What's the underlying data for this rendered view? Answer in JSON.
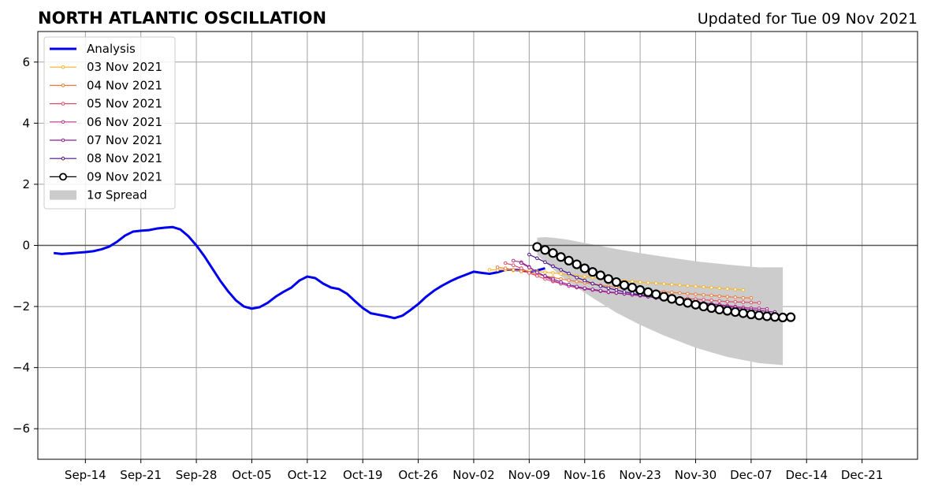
{
  "chart_data": {
    "type": "line",
    "title": "NORTH ATLANTIC OSCILLATION",
    "subtitle": "Updated for Tue 09 Nov 2021",
    "xlabel": "",
    "ylabel": "",
    "x_axis": {
      "type": "date",
      "range": [
        "2021-09-08",
        "2021-12-28"
      ],
      "ticks": [
        {
          "date": "2021-09-14",
          "label": "Sep-14"
        },
        {
          "date": "2021-09-21",
          "label": "Sep-21"
        },
        {
          "date": "2021-09-28",
          "label": "Sep-28"
        },
        {
          "date": "2021-10-05",
          "label": "Oct-05"
        },
        {
          "date": "2021-10-12",
          "label": "Oct-12"
        },
        {
          "date": "2021-10-19",
          "label": "Oct-19"
        },
        {
          "date": "2021-10-26",
          "label": "Oct-26"
        },
        {
          "date": "2021-11-02",
          "label": "Nov-02"
        },
        {
          "date": "2021-11-09",
          "label": "Nov-09"
        },
        {
          "date": "2021-11-16",
          "label": "Nov-16"
        },
        {
          "date": "2021-11-23",
          "label": "Nov-23"
        },
        {
          "date": "2021-11-30",
          "label": "Nov-30"
        },
        {
          "date": "2021-12-07",
          "label": "Dec-07"
        },
        {
          "date": "2021-12-14",
          "label": "Dec-14"
        },
        {
          "date": "2021-12-21",
          "label": "Dec-21"
        }
      ]
    },
    "y_axis": {
      "range": [
        -7,
        7
      ],
      "ticks": [
        {
          "value": -6,
          "label": "−6"
        },
        {
          "value": -4,
          "label": "−4"
        },
        {
          "value": -2,
          "label": "−2"
        },
        {
          "value": 0,
          "label": "0"
        },
        {
          "value": 2,
          "label": "2"
        },
        {
          "value": 4,
          "label": "4"
        },
        {
          "value": 6,
          "label": "6"
        }
      ]
    },
    "grid": true,
    "legend_position": "top-left",
    "analysis": {
      "name": "Analysis",
      "color": "#0000ee",
      "start_date": "2021-09-10",
      "values": [
        -0.25,
        -0.28,
        -0.26,
        -0.24,
        -0.22,
        -0.19,
        -0.13,
        -0.04,
        0.12,
        0.32,
        0.45,
        0.48,
        0.5,
        0.55,
        0.58,
        0.6,
        0.52,
        0.3,
        0.0,
        -0.35,
        -0.75,
        -1.15,
        -1.5,
        -1.8,
        -2.0,
        -2.07,
        -2.02,
        -1.88,
        -1.68,
        -1.52,
        -1.38,
        -1.15,
        -1.02,
        -1.07,
        -1.25,
        -1.38,
        -1.43,
        -1.58,
        -1.82,
        -2.05,
        -2.22,
        -2.27,
        -2.32,
        -2.38,
        -2.3,
        -2.12,
        -1.92,
        -1.68,
        -1.48,
        -1.32,
        -1.18,
        -1.06,
        -0.96,
        -0.86,
        -0.9,
        -0.93,
        -0.88,
        -0.8,
        -0.8,
        -0.82,
        -0.87,
        -0.82,
        -0.75
      ]
    },
    "forecasts": [
      {
        "name": "03 Nov 2021",
        "color": "#f7b32b",
        "start_date": "2021-11-04",
        "values": [
          -0.8,
          -0.8,
          -0.8,
          -0.82,
          -0.82,
          -0.83,
          -0.85,
          -0.88,
          -0.9,
          -0.93,
          -0.96,
          -0.99,
          -1.02,
          -1.05,
          -1.08,
          -1.1,
          -1.13,
          -1.16,
          -1.18,
          -1.2,
          -1.22,
          -1.24,
          -1.26,
          -1.28,
          -1.3,
          -1.32,
          -1.34,
          -1.36,
          -1.38,
          -1.4,
          -1.42,
          -1.44,
          -1.46
        ]
      },
      {
        "name": "04 Nov 2021",
        "color": "#ee7a3a",
        "start_date": "2021-11-05",
        "values": [
          -0.72,
          -0.75,
          -0.8,
          -0.85,
          -0.9,
          -0.95,
          -1.0,
          -1.05,
          -1.1,
          -1.14,
          -1.18,
          -1.22,
          -1.26,
          -1.3,
          -1.34,
          -1.37,
          -1.4,
          -1.42,
          -1.45,
          -1.48,
          -1.5,
          -1.52,
          -1.54,
          -1.56,
          -1.58,
          -1.6,
          -1.62,
          -1.64,
          -1.66,
          -1.68,
          -1.7,
          -1.72,
          -1.72
        ]
      },
      {
        "name": "05 Nov 2021",
        "color": "#dd4f65",
        "start_date": "2021-11-06",
        "values": [
          -0.58,
          -0.65,
          -0.75,
          -0.9,
          -1.0,
          -1.1,
          -1.18,
          -1.25,
          -1.32,
          -1.38,
          -1.42,
          -1.46,
          -1.5,
          -1.54,
          -1.56,
          -1.58,
          -1.6,
          -1.62,
          -1.64,
          -1.66,
          -1.68,
          -1.7,
          -1.72,
          -1.74,
          -1.76,
          -1.78,
          -1.8,
          -1.82,
          -1.84,
          -1.85,
          -1.86,
          -1.87,
          -1.88
        ]
      },
      {
        "name": "06 Nov 2021",
        "color": "#b5338a",
        "start_date": "2021-11-07",
        "values": [
          -0.5,
          -0.55,
          -0.7,
          -0.88,
          -1.02,
          -1.15,
          -1.25,
          -1.33,
          -1.38,
          -1.42,
          -1.46,
          -1.5,
          -1.53,
          -1.56,
          -1.59,
          -1.62,
          -1.65,
          -1.68,
          -1.7,
          -1.73,
          -1.76,
          -1.79,
          -1.82,
          -1.85,
          -1.88,
          -1.91,
          -1.94,
          -1.97,
          -2.0,
          -2.03,
          -2.05,
          -2.06,
          -2.08
        ]
      },
      {
        "name": "07 Nov 2021",
        "color": "#8b1f9c",
        "start_date": "2021-11-08",
        "values": [
          -0.58,
          -0.72,
          -0.88,
          -1.0,
          -1.1,
          -1.2,
          -1.28,
          -1.35,
          -1.4,
          -1.44,
          -1.48,
          -1.52,
          -1.55,
          -1.58,
          -1.61,
          -1.63,
          -1.66,
          -1.69,
          -1.72,
          -1.75,
          -1.78,
          -1.82,
          -1.85,
          -1.89,
          -1.92,
          -1.96,
          -2.0,
          -2.03,
          -2.07,
          -2.1,
          -2.13,
          -2.16,
          -2.18
        ]
      },
      {
        "name": "08 Nov 2021",
        "color": "#4a0f8a",
        "start_date": "2021-11-09",
        "values": [
          -0.3,
          -0.42,
          -0.55,
          -0.68,
          -0.8,
          -0.92,
          -1.05,
          -1.15,
          -1.25,
          -1.33,
          -1.4,
          -1.46,
          -1.52,
          -1.57,
          -1.62,
          -1.67,
          -1.72,
          -1.77,
          -1.82,
          -1.86,
          -1.9,
          -1.95,
          -1.99,
          -2.03,
          -2.07,
          -2.11,
          -2.15,
          -2.19,
          -2.23,
          -2.27,
          -2.31,
          -2.35,
          -2.38
        ]
      },
      {
        "name": "09 Nov 2021",
        "color": "#000000",
        "start_date": "2021-11-10",
        "values": [
          -0.05,
          -0.15,
          -0.25,
          -0.38,
          -0.5,
          -0.62,
          -0.75,
          -0.87,
          -0.98,
          -1.1,
          -1.2,
          -1.3,
          -1.38,
          -1.46,
          -1.53,
          -1.6,
          -1.68,
          -1.75,
          -1.82,
          -1.88,
          -1.94,
          -2.0,
          -2.05,
          -2.1,
          -2.14,
          -2.18,
          -2.22,
          -2.26,
          -2.29,
          -2.32,
          -2.34,
          -2.36,
          -2.35
        ]
      }
    ],
    "spread": {
      "name": "1σ Spread",
      "color": "#cccccc",
      "dates": [
        "2021-11-10",
        "2021-11-11",
        "2021-11-12",
        "2021-11-13",
        "2021-11-14",
        "2021-11-16",
        "2021-11-18",
        "2021-11-20",
        "2021-11-23",
        "2021-11-26",
        "2021-11-30",
        "2021-12-04",
        "2021-12-08",
        "2021-12-11"
      ],
      "upper": [
        0.25,
        0.27,
        0.25,
        0.22,
        0.18,
        0.08,
        -0.02,
        -0.12,
        -0.25,
        -0.37,
        -0.52,
        -0.63,
        -0.72,
        -0.72
      ],
      "lower": [
        -0.3,
        -0.55,
        -0.78,
        -1.0,
        -1.2,
        -1.55,
        -1.88,
        -2.2,
        -2.6,
        -2.95,
        -3.35,
        -3.65,
        -3.85,
        -3.92
      ]
    }
  }
}
